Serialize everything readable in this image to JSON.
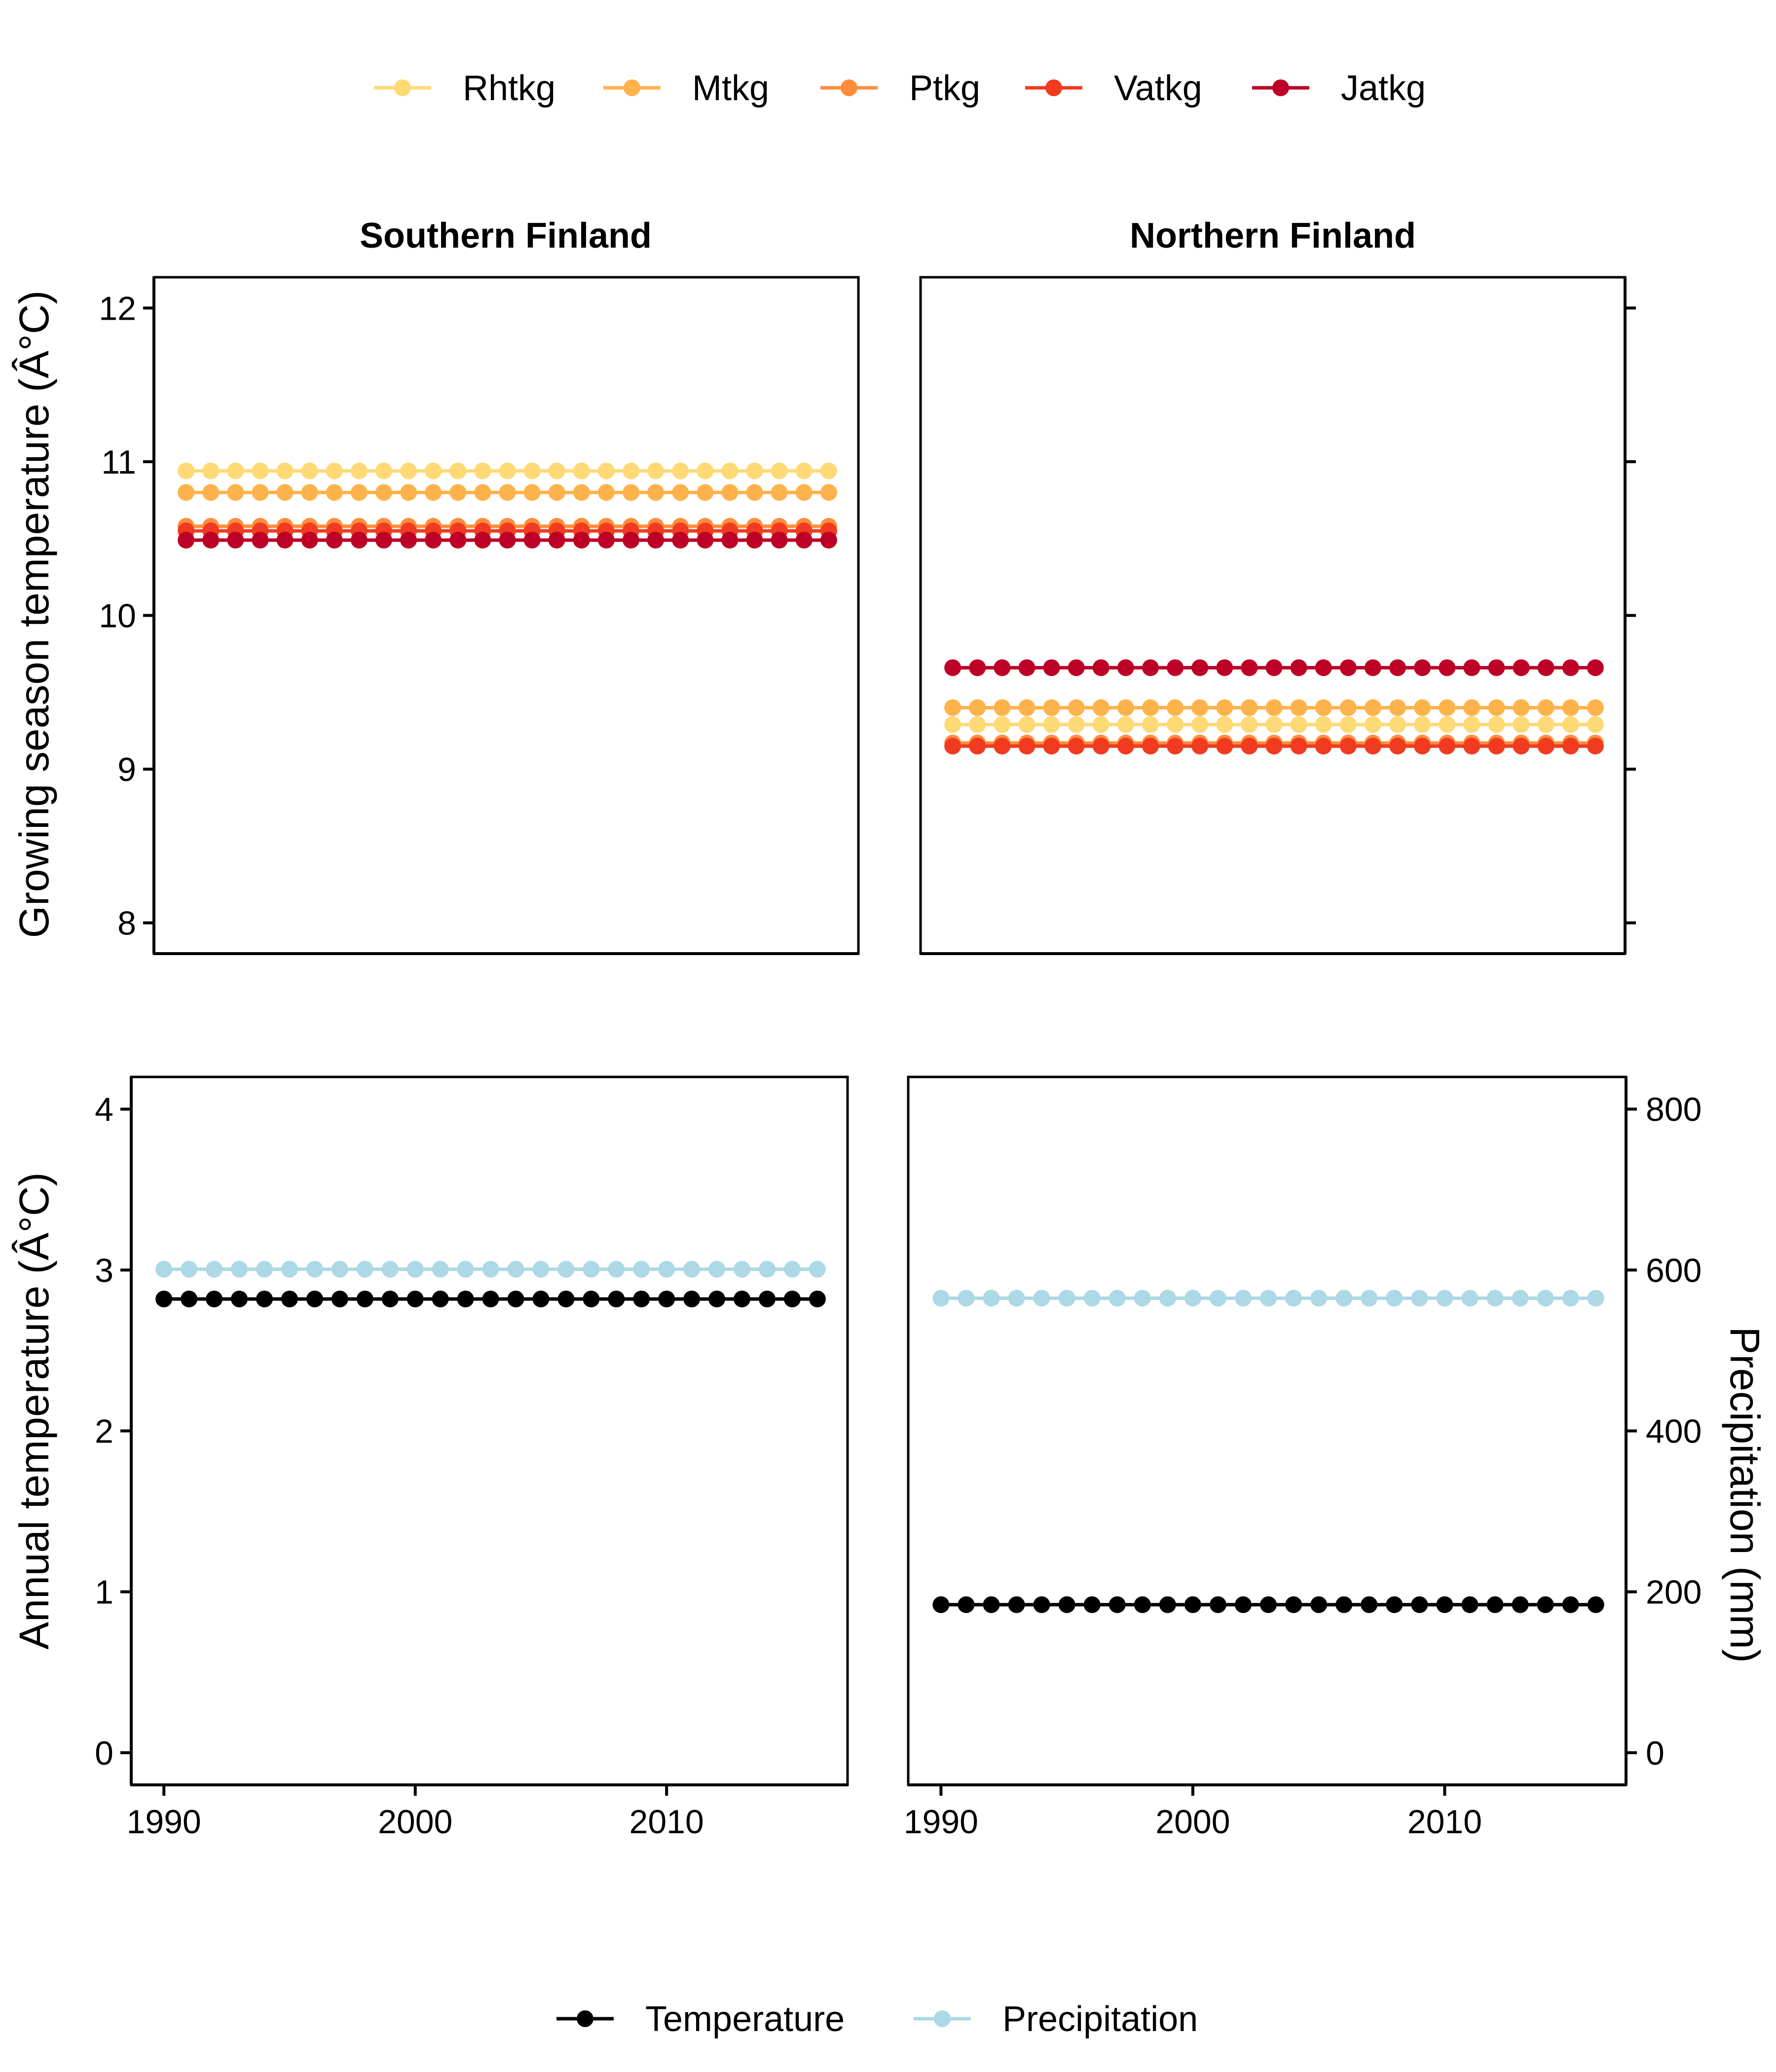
{
  "chart_data": [
    {
      "type": "line",
      "facet": "Southern Finland",
      "ylabel": "Growing season temperature (Â°C)",
      "ylim": [
        7.8,
        12.2
      ],
      "yticks": [
        "8",
        "9",
        "10",
        "11",
        "12"
      ],
      "x": [
        1990,
        1991,
        1992,
        1993,
        1994,
        1995,
        1996,
        1997,
        1998,
        1999,
        2000,
        2001,
        2002,
        2003,
        2004,
        2005,
        2006,
        2007,
        2008,
        2009,
        2010,
        2011,
        2012,
        2013,
        2014,
        2015,
        2016
      ],
      "series": [
        {
          "name": "Rhtkg",
          "color": "#FED976",
          "value": 10.94
        },
        {
          "name": "Mtkg",
          "color": "#FEB24C",
          "value": 10.8
        },
        {
          "name": "Ptkg",
          "color": "#FD8D3C",
          "value": 10.58
        },
        {
          "name": "Vatkg",
          "color": "#F03B20",
          "value": 10.55
        },
        {
          "name": "Jatkg",
          "color": "#BD0026",
          "value": 10.49
        }
      ]
    },
    {
      "type": "line",
      "facet": "Northern Finland",
      "ylim": [
        7.8,
        12.2
      ],
      "x": [
        1990,
        1991,
        1992,
        1993,
        1994,
        1995,
        1996,
        1997,
        1998,
        1999,
        2000,
        2001,
        2002,
        2003,
        2004,
        2005,
        2006,
        2007,
        2008,
        2009,
        2010,
        2011,
        2012,
        2013,
        2014,
        2015,
        2016
      ],
      "series": [
        {
          "name": "Rhtkg",
          "color": "#FED976",
          "value": 9.29
        },
        {
          "name": "Mtkg",
          "color": "#FEB24C",
          "value": 9.4
        },
        {
          "name": "Ptkg",
          "color": "#FD8D3C",
          "value": 9.17
        },
        {
          "name": "Vatkg",
          "color": "#F03B20",
          "value": 9.15
        },
        {
          "name": "Jatkg",
          "color": "#BD0026",
          "value": 9.66
        }
      ]
    },
    {
      "type": "line",
      "facet": "Southern Finland",
      "ylabel": "Annual temperature (Â°C)",
      "xlim": [
        1988.7,
        2017.2
      ],
      "ylim": [
        -0.2,
        4.2
      ],
      "xticks": [
        "1990",
        "2000",
        "2010"
      ],
      "yticks": [
        "0",
        "1",
        "2",
        "3",
        "4"
      ],
      "x": [
        1990,
        1991,
        1992,
        1993,
        1994,
        1995,
        1996,
        1997,
        1998,
        1999,
        2000,
        2001,
        2002,
        2003,
        2004,
        2005,
        2006,
        2007,
        2008,
        2009,
        2010,
        2011,
        2012,
        2013,
        2014,
        2015,
        2016
      ],
      "series": [
        {
          "name": "Temperature",
          "color": "#000000",
          "value": 2.82
        },
        {
          "name": "Precipitation",
          "color": "#ADD8E6",
          "value": 601
        }
      ]
    },
    {
      "type": "line",
      "facet": "Northern Finland",
      "y2label": "Precipitation (mm)",
      "xlim": [
        1988.7,
        2017.2
      ],
      "ylim": [
        -0.2,
        4.2
      ],
      "y2lim": [
        -40,
        840
      ],
      "xticks": [
        "1990",
        "2000",
        "2010"
      ],
      "y2ticks": [
        "0",
        "200",
        "400",
        "600",
        "800"
      ],
      "x": [
        1990,
        1991,
        1992,
        1993,
        1994,
        1995,
        1996,
        1997,
        1998,
        1999,
        2000,
        2001,
        2002,
        2003,
        2004,
        2005,
        2006,
        2007,
        2008,
        2009,
        2010,
        2011,
        2012,
        2013,
        2014,
        2015,
        2016
      ],
      "series": [
        {
          "name": "Temperature",
          "color": "#000000",
          "value": 0.92
        },
        {
          "name": "Precipitation",
          "color": "#ADD8E6",
          "value": 565
        }
      ]
    }
  ],
  "legends": {
    "top": [
      {
        "label": "Rhtkg",
        "color": "#FED976"
      },
      {
        "label": "Mtkg",
        "color": "#FEB24C"
      },
      {
        "label": "Ptkg",
        "color": "#FD8D3C"
      },
      {
        "label": "Vatkg",
        "color": "#F03B20"
      },
      {
        "label": "Jatkg",
        "color": "#BD0026"
      }
    ],
    "bottom": [
      {
        "label": "Temperature",
        "color": "#000000"
      },
      {
        "label": "Precipitation",
        "color": "#ADD8E6"
      }
    ]
  }
}
